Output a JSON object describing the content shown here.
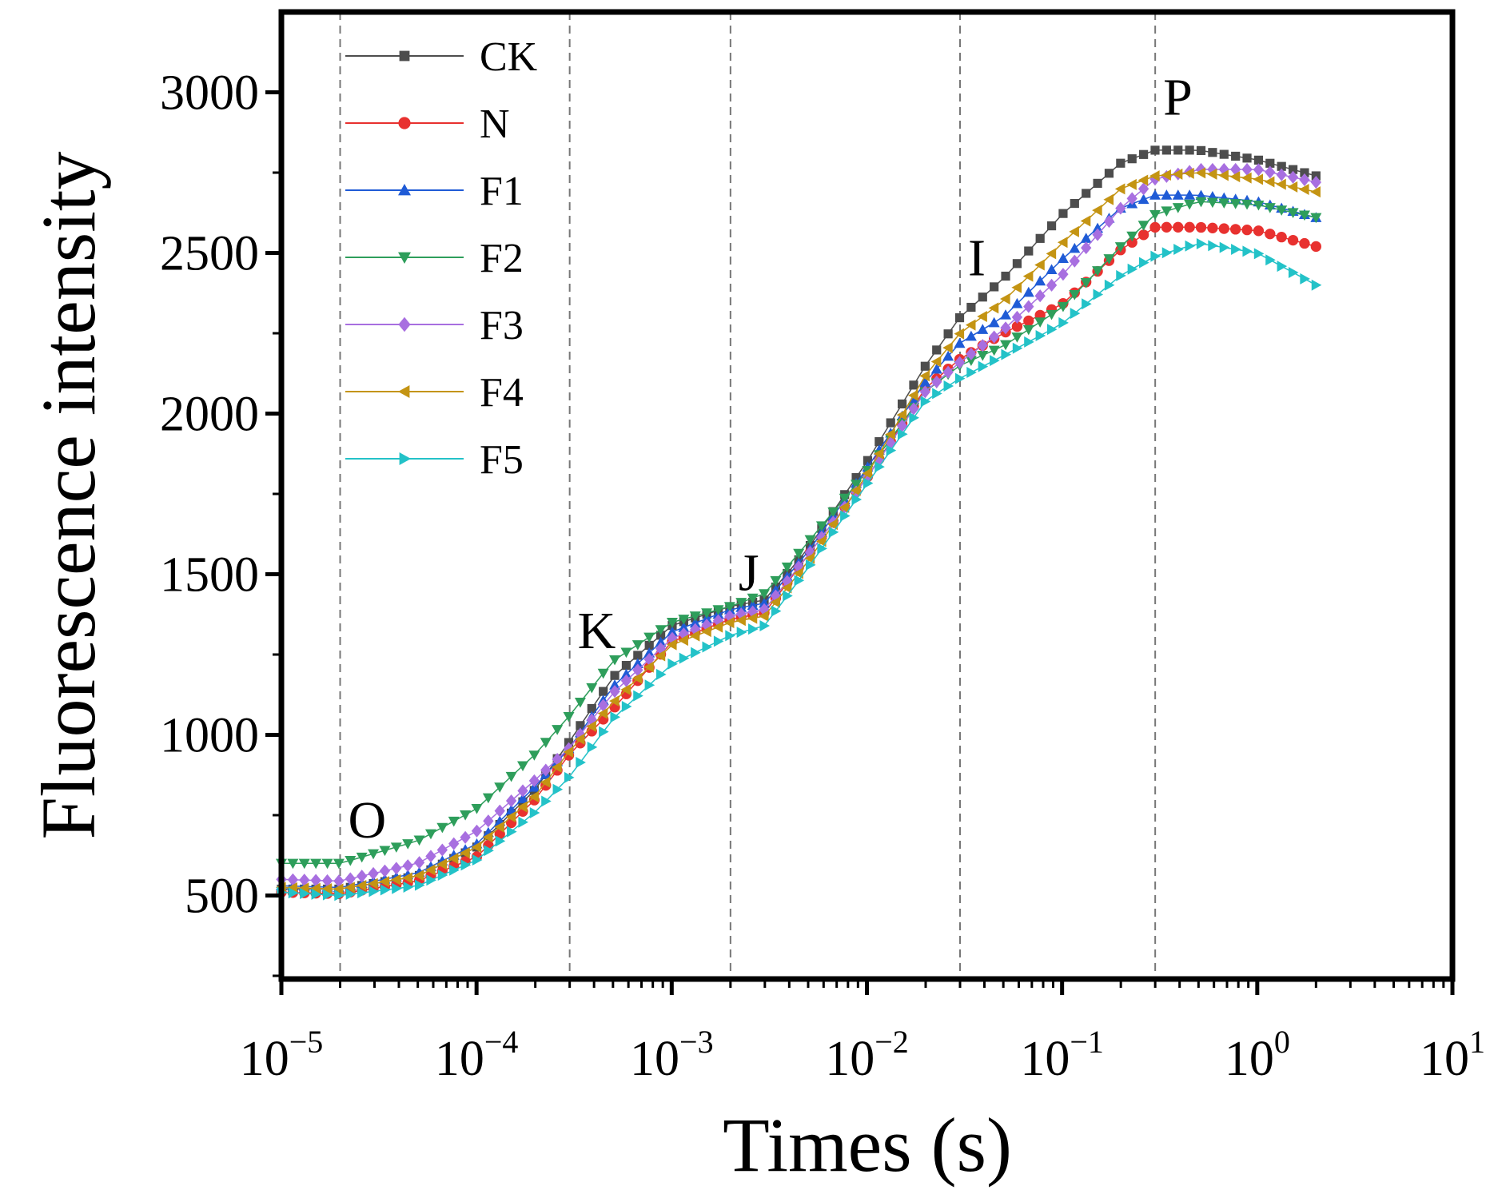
{
  "chart_data": {
    "type": "line",
    "title": "",
    "xlabel": "Times (s)",
    "ylabel": "Fluorescence intensity",
    "xscale": "log",
    "xlim": [
      1e-05,
      10
    ],
    "ylim": [
      240,
      3250
    ],
    "x_ticks": [
      {
        "value": 1e-05,
        "base": "10",
        "exp": "−5"
      },
      {
        "value": 0.0001,
        "base": "10",
        "exp": "−4"
      },
      {
        "value": 0.001,
        "base": "10",
        "exp": "−3"
      },
      {
        "value": 0.01,
        "base": "10",
        "exp": "−2"
      },
      {
        "value": 0.1,
        "base": "10",
        "exp": "−1"
      },
      {
        "value": 1,
        "base": "10",
        "exp": "0"
      },
      {
        "value": 10,
        "base": "10",
        "exp": "1"
      }
    ],
    "y_ticks": [
      {
        "value": 500,
        "label": "500"
      },
      {
        "value": 1000,
        "label": "1000"
      },
      {
        "value": 1500,
        "label": "1500"
      },
      {
        "value": 2000,
        "label": "2000"
      },
      {
        "value": 2500,
        "label": "2500"
      },
      {
        "value": 3000,
        "label": "3000"
      }
    ],
    "phase_markers": [
      {
        "label": "O",
        "x": 2e-05,
        "label_y": 680
      },
      {
        "label": "K",
        "x": 0.0003,
        "label_y": 1270
      },
      {
        "label": "J",
        "x": 0.002,
        "label_y": 1450
      },
      {
        "label": "I",
        "x": 0.03,
        "label_y": 2430
      },
      {
        "label": "P",
        "x": 0.3,
        "label_y": 2930
      }
    ],
    "legend_position": "top-left",
    "series": [
      {
        "name": "CK",
        "color": "#4d4d4d",
        "marker": "square",
        "x": [
          1e-05,
          2e-05,
          5e-05,
          0.0001,
          0.0002,
          0.0003,
          0.0005,
          0.001,
          0.002,
          0.003,
          0.005,
          0.01,
          0.02,
          0.03,
          0.05,
          0.1,
          0.2,
          0.3,
          0.5,
          1,
          2
        ],
        "values": [
          520,
          520,
          560,
          650,
          830,
          980,
          1180,
          1340,
          1400,
          1420,
          1580,
          1850,
          2150,
          2300,
          2420,
          2620,
          2780,
          2820,
          2820,
          2790,
          2740
        ]
      },
      {
        "name": "N",
        "color": "#e8312f",
        "marker": "circle",
        "x": [
          1e-05,
          2e-05,
          5e-05,
          0.0001,
          0.0002,
          0.0003,
          0.0005,
          0.001,
          0.002,
          0.003,
          0.005,
          0.01,
          0.02,
          0.03,
          0.05,
          0.1,
          0.2,
          0.3,
          0.5,
          1,
          2
        ],
        "values": [
          510,
          505,
          545,
          620,
          800,
          940,
          1080,
          1290,
          1360,
          1380,
          1560,
          1800,
          2080,
          2170,
          2250,
          2340,
          2510,
          2580,
          2580,
          2570,
          2520
        ]
      },
      {
        "name": "F1",
        "color": "#1f5bd6",
        "marker": "triangle-up",
        "x": [
          1e-05,
          2e-05,
          5e-05,
          0.0001,
          0.0002,
          0.0003,
          0.0005,
          0.001,
          0.002,
          0.003,
          0.005,
          0.01,
          0.02,
          0.03,
          0.05,
          0.1,
          0.2,
          0.3,
          0.5,
          1,
          2
        ],
        "values": [
          530,
          525,
          570,
          660,
          840,
          960,
          1150,
          1320,
          1390,
          1410,
          1570,
          1830,
          2100,
          2220,
          2300,
          2480,
          2640,
          2680,
          2680,
          2660,
          2610
        ]
      },
      {
        "name": "F2",
        "color": "#2e9e5b",
        "marker": "triangle-down",
        "x": [
          1e-05,
          2e-05,
          5e-05,
          0.0001,
          0.0002,
          0.0003,
          0.0005,
          0.001,
          0.002,
          0.003,
          0.005,
          0.01,
          0.02,
          0.03,
          0.05,
          0.1,
          0.2,
          0.3,
          0.5,
          1,
          2
        ],
        "values": [
          600,
          600,
          670,
          770,
          940,
          1060,
          1230,
          1350,
          1400,
          1440,
          1600,
          1820,
          2070,
          2150,
          2210,
          2330,
          2520,
          2620,
          2660,
          2650,
          2610
        ]
      },
      {
        "name": "F3",
        "color": "#a86fe0",
        "marker": "diamond",
        "x": [
          1e-05,
          2e-05,
          5e-05,
          0.0001,
          0.0002,
          0.0003,
          0.0005,
          0.001,
          0.002,
          0.003,
          0.005,
          0.01,
          0.02,
          0.03,
          0.05,
          0.1,
          0.2,
          0.3,
          0.5,
          1,
          2
        ],
        "values": [
          550,
          545,
          600,
          700,
          860,
          960,
          1130,
          1300,
          1370,
          1390,
          1560,
          1800,
          2070,
          2160,
          2260,
          2430,
          2640,
          2730,
          2760,
          2760,
          2720
        ]
      },
      {
        "name": "F4",
        "color": "#c49413",
        "marker": "triangle-left",
        "x": [
          1e-05,
          2e-05,
          5e-05,
          0.0001,
          0.0002,
          0.0003,
          0.0005,
          0.001,
          0.002,
          0.003,
          0.005,
          0.01,
          0.02,
          0.03,
          0.05,
          0.1,
          0.2,
          0.3,
          0.5,
          1,
          2
        ],
        "values": [
          525,
          520,
          560,
          650,
          810,
          950,
          1100,
          1280,
          1350,
          1370,
          1540,
          1810,
          2120,
          2250,
          2350,
          2530,
          2700,
          2740,
          2750,
          2730,
          2690
        ]
      },
      {
        "name": "F5",
        "color": "#23c2c8",
        "marker": "triangle-right",
        "x": [
          1e-05,
          2e-05,
          5e-05,
          0.0001,
          0.0002,
          0.0003,
          0.0005,
          0.001,
          0.002,
          0.003,
          0.005,
          0.01,
          0.02,
          0.03,
          0.05,
          0.1,
          0.2,
          0.3,
          0.5,
          1,
          2
        ],
        "values": [
          510,
          500,
          530,
          610,
          760,
          870,
          1050,
          1220,
          1310,
          1340,
          1520,
          1780,
          2040,
          2110,
          2180,
          2280,
          2430,
          2490,
          2530,
          2500,
          2400
        ]
      }
    ]
  }
}
